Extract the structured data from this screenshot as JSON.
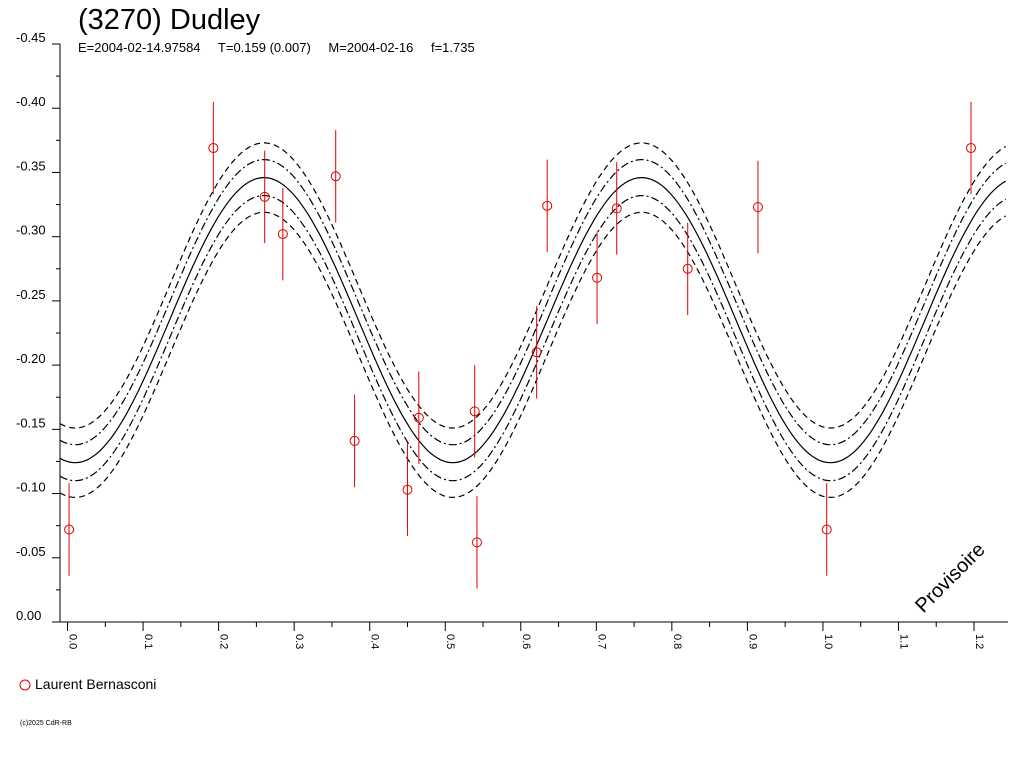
{
  "header": {
    "title": "(3270) Dudley",
    "epoch": "E=2004-02-14.97584",
    "period": "T=0.159 (0.007)",
    "mid_date": "M=2004-02-16",
    "f": "f=1.735"
  },
  "watermark": "Provisoire",
  "legend": {
    "observer": "Laurent Bernasconi",
    "color": "#e00000"
  },
  "copyright": "(c)2025 CdR-RB",
  "chart_data": {
    "type": "scatter",
    "title": "(3270) Dudley",
    "xlabel": "",
    "ylabel": "",
    "xlim": [
      -0.01,
      1.245
    ],
    "ylim": [
      0.0,
      -0.45
    ],
    "x_ticks": [
      "0.0",
      "0.1",
      "0.2",
      "0.3",
      "0.4",
      "0.5",
      "0.6",
      "0.7",
      "0.8",
      "0.9",
      "1.0",
      "1.1",
      "1.2"
    ],
    "y_ticks": [
      "-0.45",
      "-0.40",
      "-0.35",
      "-0.30",
      "-0.25",
      "-0.20",
      "-0.15",
      "-0.10",
      "-0.05",
      "0.00"
    ],
    "series": [
      {
        "name": "Laurent Bernasconi",
        "color": "#e00000",
        "marker": "open-circle",
        "points": [
          {
            "x": 0.002,
            "y": -0.072,
            "err": 0.036
          },
          {
            "x": 0.193,
            "y": -0.369,
            "err": 0.036
          },
          {
            "x": 0.261,
            "y": -0.331,
            "err": 0.036
          },
          {
            "x": 0.285,
            "y": -0.302,
            "err": 0.036
          },
          {
            "x": 0.355,
            "y": -0.347,
            "err": 0.036
          },
          {
            "x": 0.38,
            "y": -0.141,
            "err": 0.036
          },
          {
            "x": 0.45,
            "y": -0.103,
            "err": 0.036
          },
          {
            "x": 0.465,
            "y": -0.159,
            "err": 0.036
          },
          {
            "x": 0.539,
            "y": -0.164,
            "err": 0.036
          },
          {
            "x": 0.542,
            "y": -0.062,
            "err": 0.036
          },
          {
            "x": 0.621,
            "y": -0.21,
            "err": 0.036
          },
          {
            "x": 0.635,
            "y": -0.324,
            "err": 0.036
          },
          {
            "x": 0.701,
            "y": -0.268,
            "err": 0.036
          },
          {
            "x": 0.727,
            "y": -0.322,
            "err": 0.036
          },
          {
            "x": 0.821,
            "y": -0.275,
            "err": 0.036
          },
          {
            "x": 0.914,
            "y": -0.323,
            "err": 0.036
          },
          {
            "x": 1.005,
            "y": -0.072,
            "err": 0.036
          },
          {
            "x": 1.196,
            "y": -0.369,
            "err": 0.036
          }
        ]
      }
    ],
    "model": {
      "mean": -0.235,
      "amplitude": 0.111,
      "phase_of_max": 0.26,
      "cycles_per_phase": 2,
      "envelope_offsets": [
        -0.027,
        -0.014,
        0,
        0.014,
        0.027
      ],
      "envelope_styles": [
        "dashed",
        "dashdot",
        "solid",
        "dashdot",
        "dashed"
      ]
    },
    "grid": false,
    "legend_position": "bottom-left"
  }
}
